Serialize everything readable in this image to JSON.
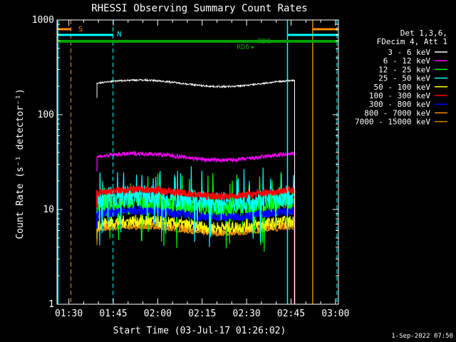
{
  "chart_data": {
    "type": "line",
    "title": "RHESSI Observing Summary Count Rates",
    "xlabel": "Start Time (03-Jul-17 01:26:02)",
    "ylabel": "Count Rate (s⁻¹ detector⁻¹)",
    "xlim_minutes": [
      86,
      181
    ],
    "ylim": [
      1,
      1000
    ],
    "yscale": "log",
    "x_ticks": [
      {
        "t": 90,
        "label": "01:30"
      },
      {
        "t": 105,
        "label": "01:45"
      },
      {
        "t": 120,
        "label": "02:00"
      },
      {
        "t": 135,
        "label": "02:15"
      },
      {
        "t": 150,
        "label": "02:30"
      },
      {
        "t": 165,
        "label": "02:45"
      },
      {
        "t": 180,
        "label": "03:00"
      }
    ],
    "y_ticks": [
      {
        "v": 1,
        "label": "1"
      },
      {
        "v": 10,
        "label": "10"
      },
      {
        "v": 100,
        "label": "100"
      },
      {
        "v": 1000,
        "label": "1000"
      }
    ],
    "legend_header": [
      "Det 1,3,6,",
      "FDecim 4, Att 1"
    ],
    "legend_placement": "right",
    "data_start": 99.5,
    "data_end": 166.2,
    "series": [
      {
        "name": "3 - 6 keV",
        "color": "#ffffff",
        "level": 215,
        "noise": 0.02
      },
      {
        "name": "6 - 12 keV",
        "color": "#ff00ff",
        "level": 36,
        "noise": 0.05
      },
      {
        "name": "12 - 25 keV",
        "color": "#00ff00",
        "level": 11,
        "noise": 0.3
      },
      {
        "name": "25 - 50 keV",
        "color": "#00ffff",
        "level": 13,
        "noise": 0.25
      },
      {
        "name": "50 - 100 keV",
        "color": "#ffff00",
        "level": 7,
        "noise": 0.15
      },
      {
        "name": "100 - 300 keV",
        "color": "#ff0000",
        "level": 15,
        "noise": 0.08
      },
      {
        "name": "300 - 800 keV",
        "color": "#0000ff",
        "level": 9,
        "noise": 0.1
      },
      {
        "name": "800 - 7000 keV",
        "color": "#ff8c00",
        "level": 6.5,
        "noise": 0.1
      },
      {
        "name": "7000 - 15000 keV",
        "color": "#cc8800",
        "level": 6,
        "noise": 0.05
      }
    ],
    "flags": [
      {
        "label": "S",
        "color": "#ff8c00"
      },
      {
        "label": "N",
        "color": "#00ffff"
      },
      {
        "label": "RD6",
        "color": "#00a000"
      },
      {
        "label": "RDO",
        "color": "#00a000"
      }
    ],
    "footer": "1-Sep-2022 07:50"
  }
}
